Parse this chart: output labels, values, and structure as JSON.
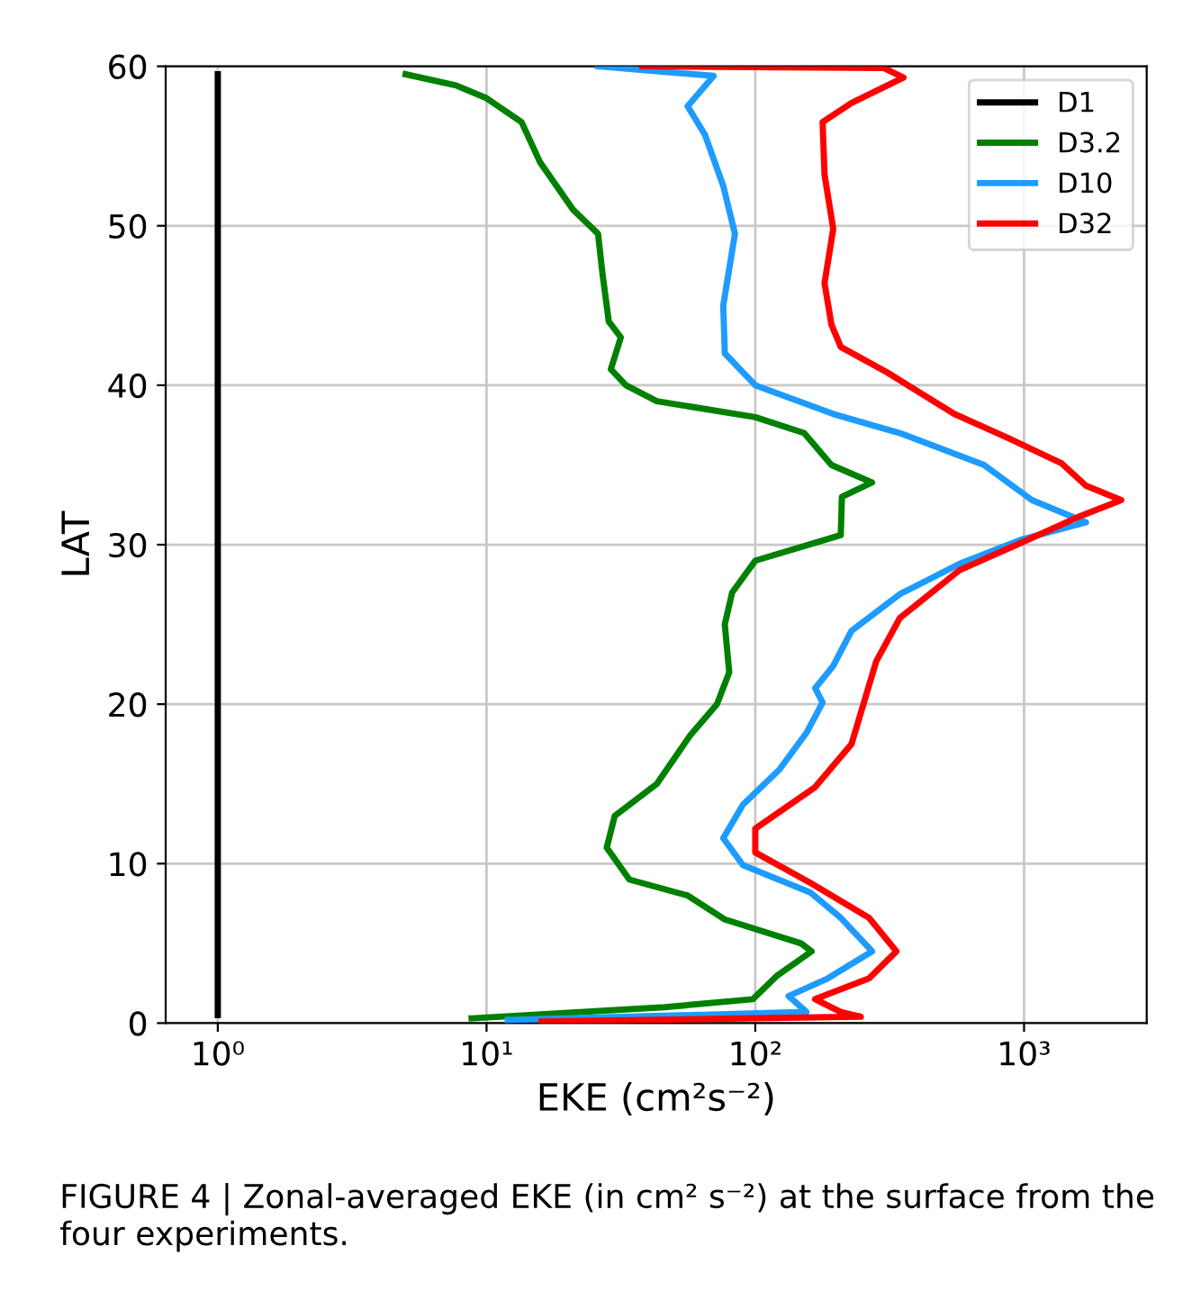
{
  "chart_data": {
    "type": "line",
    "xlabel": "EKE (cm²s⁻²)",
    "ylabel": "LAT",
    "log": "x",
    "grid": true,
    "legend": "top right",
    "line_style": "solid",
    "marker": "none",
    "xlim": [
      0.64,
      2860
    ],
    "xticks": [
      {
        "value": 1,
        "label": "10⁰"
      },
      {
        "value": 10,
        "label": "10¹"
      },
      {
        "value": 100,
        "label": "10²"
      },
      {
        "value": 1000,
        "label": "10³"
      }
    ],
    "ylim": [
      0,
      60
    ],
    "yticks": [
      0,
      10,
      20,
      30,
      40,
      50,
      60
    ],
    "series": [
      {
        "name": "D1",
        "color": "#000000",
        "x": [
          1,
          1
        ],
        "values": [
          0.5,
          59.5
        ]
      },
      {
        "name": "D3.2",
        "color": "#008000",
        "x": [
          8.8,
          46,
          98,
          121,
          162,
          148,
          77,
          56,
          34,
          28,
          30,
          43,
          57,
          72,
          80,
          77,
          82,
          100,
          208,
          210,
          272,
          192,
          152,
          100,
          43,
          33,
          29,
          31.6,
          28.5,
          27,
          26,
          21,
          15.8,
          13.5,
          10,
          7.7,
          5
        ],
        "values": [
          0.3,
          1,
          1.5,
          3,
          4.5,
          5,
          6.5,
          8,
          9,
          11,
          13,
          15,
          18,
          20,
          22,
          25,
          27,
          29,
          30.6,
          33,
          33.9,
          35,
          37,
          38,
          39,
          40,
          41,
          43,
          44,
          47,
          49.5,
          51,
          54,
          56.5,
          58,
          58.8,
          59.5
        ]
      },
      {
        "name": "D10",
        "color": "#1e9bff",
        "x": [
          12,
          155,
          133,
          186,
          272,
          208,
          160,
          90,
          76,
          90,
          123,
          155,
          178,
          167,
          195,
          228,
          345,
          575,
          970,
          1700,
          1070,
          710,
          345,
          195,
          100,
          77,
          76,
          84,
          76,
          65,
          56,
          70,
          26
        ],
        "values": [
          0.2,
          0.7,
          1.7,
          2.8,
          4.5,
          6.6,
          8.2,
          9.9,
          11.6,
          13.7,
          15.9,
          18.2,
          20.1,
          21,
          22.4,
          24.6,
          26.9,
          28.8,
          30.3,
          31.4,
          32.8,
          35,
          37,
          38.2,
          40,
          42,
          45,
          49.5,
          52.5,
          55.7,
          57.5,
          59.4,
          60
        ]
      },
      {
        "name": "D32",
        "color": "#ff0000",
        "x": [
          16,
          247,
          208,
          167,
          265,
          335,
          265,
          160,
          100,
          100,
          167,
          228,
          262,
          282,
          345,
          575,
          970,
          1620,
          2300,
          1700,
          1380,
          870,
          550,
          310,
          208,
          192,
          181,
          195,
          181,
          178,
          228,
          356,
          300,
          38
        ],
        "values": [
          0.1,
          0.4,
          0.7,
          1.5,
          2.8,
          4.5,
          6.6,
          8.8,
          10.7,
          12.2,
          14.8,
          17.5,
          20.9,
          22.7,
          25.4,
          28.4,
          30.1,
          31.8,
          32.8,
          33.7,
          35.1,
          36.7,
          38.2,
          40.8,
          42.4,
          43.8,
          46.4,
          49.8,
          53.2,
          56.5,
          57.7,
          59.3,
          59.9,
          60
        ]
      }
    ],
    "annotations": [
      "FIGURE 4 | Zonal-averaged EKE (in cm² s⁻²) at the surface from the four experiments."
    ]
  }
}
